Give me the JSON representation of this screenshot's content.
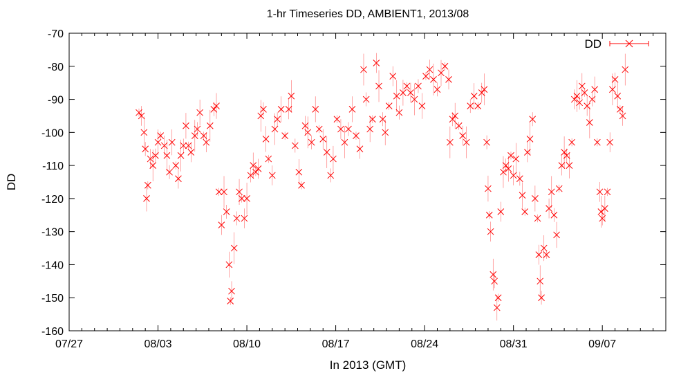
{
  "chart_data": {
    "type": "scatter",
    "title": "1-hr Timeseries DD, AMBIENT1, 2013/08",
    "xlabel": "In 2013 (GMT)",
    "ylabel": "DD",
    "legend_position": "top-right",
    "grid": false,
    "xlim": [
      -5,
      42
    ],
    "ylim": [
      -160,
      -70
    ],
    "x_ticks": [
      {
        "value": -5,
        "label": "07/27"
      },
      {
        "value": 2,
        "label": "08/03"
      },
      {
        "value": 9,
        "label": "08/10"
      },
      {
        "value": 16,
        "label": "08/17"
      },
      {
        "value": 23,
        "label": "08/24"
      },
      {
        "value": 30,
        "label": "08/31"
      },
      {
        "value": 37,
        "label": "09/07"
      }
    ],
    "y_ticks": [
      -70,
      -80,
      -90,
      -100,
      -110,
      -120,
      -130,
      -140,
      -150,
      -160
    ],
    "series": [
      {
        "name": "DD",
        "color": "#ff0000",
        "marker": "x",
        "error_bars": true,
        "points": [
          [
            0.5,
            -94
          ],
          [
            0.7,
            -95
          ],
          [
            0.9,
            -100
          ],
          [
            1.0,
            -105
          ],
          [
            1.1,
            -120
          ],
          [
            1.2,
            -116
          ],
          [
            1.4,
            -108
          ],
          [
            1.6,
            -110
          ],
          [
            1.8,
            -107
          ],
          [
            2.0,
            -103
          ],
          [
            2.2,
            -101
          ],
          [
            2.5,
            -104
          ],
          [
            2.7,
            -107
          ],
          [
            2.9,
            -112
          ],
          [
            3.1,
            -103
          ],
          [
            3.4,
            -110
          ],
          [
            3.6,
            -114
          ],
          [
            3.8,
            -107
          ],
          [
            4.0,
            -104
          ],
          [
            4.2,
            -98
          ],
          [
            4.4,
            -104
          ],
          [
            4.6,
            -106
          ],
          [
            4.9,
            -101
          ],
          [
            5.1,
            -99
          ],
          [
            5.3,
            -94
          ],
          [
            5.6,
            -101
          ],
          [
            5.8,
            -103
          ],
          [
            6.1,
            -98
          ],
          [
            6.4,
            -93
          ],
          [
            6.6,
            -92
          ],
          [
            6.8,
            -118
          ],
          [
            7.0,
            -128
          ],
          [
            7.2,
            -118
          ],
          [
            7.4,
            -124
          ],
          [
            7.6,
            -140
          ],
          [
            7.7,
            -151
          ],
          [
            7.8,
            -148
          ],
          [
            8.0,
            -135
          ],
          [
            8.2,
            -126
          ],
          [
            8.4,
            -118
          ],
          [
            8.6,
            -120
          ],
          [
            8.8,
            -126
          ],
          [
            9.0,
            -120
          ],
          [
            9.3,
            -113
          ],
          [
            9.5,
            -110
          ],
          [
            9.7,
            -112
          ],
          [
            9.9,
            -111
          ],
          [
            10.1,
            -95
          ],
          [
            10.3,
            -93
          ],
          [
            10.5,
            -102
          ],
          [
            10.7,
            -108
          ],
          [
            11.0,
            -113
          ],
          [
            11.2,
            -99
          ],
          [
            11.4,
            -96
          ],
          [
            11.7,
            -93
          ],
          [
            12.0,
            -101
          ],
          [
            12.3,
            -93
          ],
          [
            12.5,
            -89
          ],
          [
            12.8,
            -104
          ],
          [
            13.1,
            -112
          ],
          [
            13.3,
            -116
          ],
          [
            13.6,
            -98
          ],
          [
            13.8,
            -100
          ],
          [
            14.1,
            -103
          ],
          [
            14.4,
            -93
          ],
          [
            14.7,
            -99
          ],
          [
            15.0,
            -102
          ],
          [
            15.3,
            -106
          ],
          [
            15.6,
            -113
          ],
          [
            15.8,
            -108
          ],
          [
            16.1,
            -96
          ],
          [
            16.4,
            -99
          ],
          [
            16.7,
            -103
          ],
          [
            17.0,
            -99
          ],
          [
            17.3,
            -93
          ],
          [
            17.6,
            -101
          ],
          [
            17.9,
            -105
          ],
          [
            18.2,
            -81
          ],
          [
            18.4,
            -90
          ],
          [
            18.7,
            -99
          ],
          [
            18.9,
            -96
          ],
          [
            19.2,
            -79
          ],
          [
            19.4,
            -86
          ],
          [
            19.7,
            -96
          ],
          [
            19.9,
            -100
          ],
          [
            20.2,
            -92
          ],
          [
            20.5,
            -83
          ],
          [
            20.8,
            -89
          ],
          [
            21.0,
            -94
          ],
          [
            21.3,
            -88
          ],
          [
            21.6,
            -86
          ],
          [
            21.9,
            -88
          ],
          [
            22.2,
            -90
          ],
          [
            22.5,
            -86
          ],
          [
            22.8,
            -92
          ],
          [
            23.1,
            -83
          ],
          [
            23.4,
            -81
          ],
          [
            23.7,
            -84
          ],
          [
            24.0,
            -87
          ],
          [
            24.3,
            -82
          ],
          [
            24.6,
            -80
          ],
          [
            24.9,
            -84
          ],
          [
            25.0,
            -103
          ],
          [
            25.2,
            -96
          ],
          [
            25.4,
            -95
          ],
          [
            25.7,
            -98
          ],
          [
            26.0,
            -101
          ],
          [
            26.3,
            -103
          ],
          [
            26.6,
            -92
          ],
          [
            26.9,
            -89
          ],
          [
            27.2,
            -92
          ],
          [
            27.5,
            -88
          ],
          [
            27.7,
            -87
          ],
          [
            27.9,
            -103
          ],
          [
            28.0,
            -117
          ],
          [
            28.1,
            -125
          ],
          [
            28.2,
            -130
          ],
          [
            28.4,
            -143
          ],
          [
            28.5,
            -145
          ],
          [
            28.7,
            -153
          ],
          [
            28.8,
            -150
          ],
          [
            29.0,
            -124
          ],
          [
            29.2,
            -112
          ],
          [
            29.4,
            -110
          ],
          [
            29.6,
            -111
          ],
          [
            29.8,
            -107
          ],
          [
            30.0,
            -113
          ],
          [
            30.2,
            -108
          ],
          [
            30.5,
            -114
          ],
          [
            30.7,
            -119
          ],
          [
            30.9,
            -124
          ],
          [
            31.1,
            -106
          ],
          [
            31.3,
            -102
          ],
          [
            31.5,
            -96
          ],
          [
            31.7,
            -120
          ],
          [
            31.9,
            -126
          ],
          [
            32.0,
            -137
          ],
          [
            32.1,
            -145
          ],
          [
            32.2,
            -150
          ],
          [
            32.4,
            -135
          ],
          [
            32.6,
            -137
          ],
          [
            32.8,
            -123
          ],
          [
            33.0,
            -118
          ],
          [
            33.2,
            -125
          ],
          [
            33.4,
            -131
          ],
          [
            33.6,
            -117
          ],
          [
            33.8,
            -110
          ],
          [
            34.0,
            -106
          ],
          [
            34.2,
            -107
          ],
          [
            34.4,
            -110
          ],
          [
            34.6,
            -103
          ],
          [
            34.8,
            -90
          ],
          [
            35.0,
            -89
          ],
          [
            35.2,
            -91
          ],
          [
            35.4,
            -86
          ],
          [
            35.6,
            -88
          ],
          [
            35.8,
            -92
          ],
          [
            36.0,
            -97
          ],
          [
            36.2,
            -90
          ],
          [
            36.4,
            -87
          ],
          [
            36.6,
            -103
          ],
          [
            36.8,
            -118
          ],
          [
            36.9,
            -124
          ],
          [
            37.0,
            -126
          ],
          [
            37.2,
            -123
          ],
          [
            37.4,
            -118
          ],
          [
            37.6,
            -103
          ],
          [
            37.8,
            -87
          ],
          [
            38.0,
            -84
          ],
          [
            38.2,
            -89
          ],
          [
            38.4,
            -93
          ],
          [
            38.6,
            -95
          ],
          [
            38.8,
            -81
          ]
        ]
      }
    ]
  }
}
